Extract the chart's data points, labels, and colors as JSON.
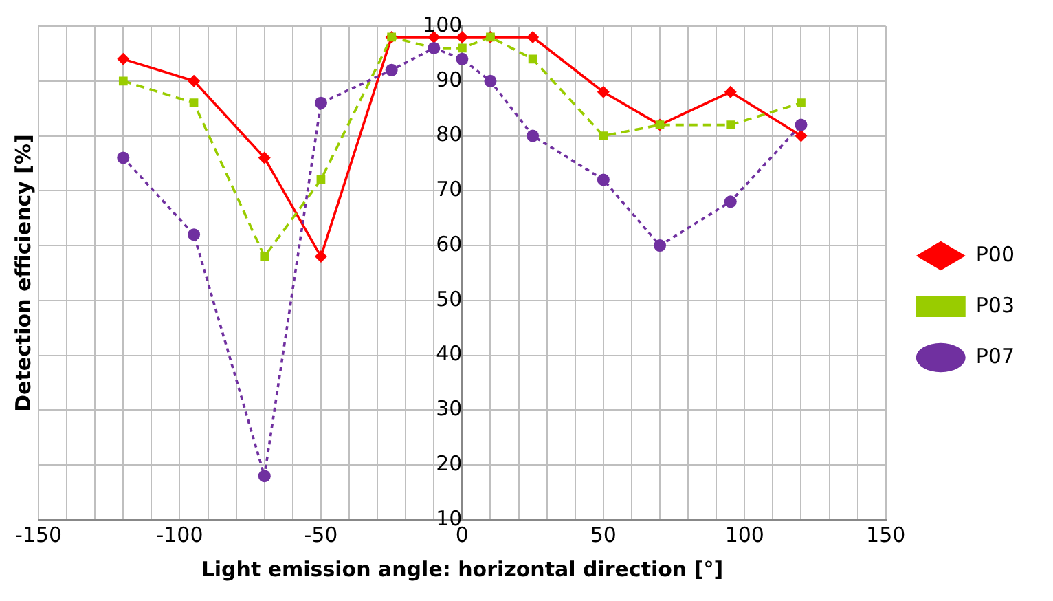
{
  "chart_data": {
    "type": "line",
    "xlabel": "Light emission angle: horizontal direction [°]",
    "ylabel": "Detection efficiency [%]",
    "x": [
      -120,
      -95,
      -70,
      -50,
      -25,
      -10,
      0,
      10,
      25,
      50,
      70,
      95,
      120
    ],
    "series": [
      {
        "name": "P00",
        "color": "#ff0000",
        "marker": "diamond",
        "line_style": "solid",
        "values": [
          94,
          90,
          76,
          58,
          98,
          98,
          98,
          98,
          98,
          88,
          82,
          88,
          80
        ]
      },
      {
        "name": "P03",
        "color": "#99cc00",
        "marker": "square",
        "line_style": "dashed",
        "values": [
          90,
          86,
          58,
          72,
          98,
          96,
          96,
          98,
          94,
          80,
          82,
          82,
          86
        ]
      },
      {
        "name": "P07",
        "color": "#7030a0",
        "marker": "circle",
        "line_style": "dotted",
        "values": [
          76,
          62,
          18,
          86,
          92,
          96,
          94,
          90,
          80,
          72,
          60,
          68,
          82
        ]
      }
    ],
    "xlim": [
      -150,
      150
    ],
    "xticks": [
      -150,
      {
        "value": -140,
        "label": null
      },
      {
        "value": -130,
        "label": null
      },
      {
        "value": -120,
        "label": null
      },
      {
        "value": -110,
        "label": null
      },
      -100,
      {
        "value": -90,
        "label": null
      },
      {
        "value": -80,
        "label": null
      },
      {
        "value": -70,
        "label": null
      },
      {
        "value": -60,
        "label": null
      },
      -50,
      {
        "value": -40,
        "label": null
      },
      {
        "value": -30,
        "label": null
      },
      {
        "value": -20,
        "label": null
      },
      {
        "value": -10,
        "label": null
      },
      0,
      {
        "value": 10,
        "label": null
      },
      {
        "value": 20,
        "label": null
      },
      {
        "value": 30,
        "label": null
      },
      {
        "value": 40,
        "label": null
      },
      50,
      {
        "value": 60,
        "label": null
      },
      {
        "value": 70,
        "label": null
      },
      {
        "value": 80,
        "label": null
      },
      {
        "value": 90,
        "label": null
      },
      100,
      {
        "value": 110,
        "label": null
      },
      {
        "value": 120,
        "label": null
      },
      {
        "value": 130,
        "label": null
      },
      {
        "value": 140,
        "label": null
      },
      150
    ],
    "ylim": [
      10,
      100
    ],
    "yticks": [
      10,
      20,
      30,
      40,
      50,
      60,
      70,
      80,
      90,
      100
    ],
    "grid": true,
    "legend": "right"
  }
}
